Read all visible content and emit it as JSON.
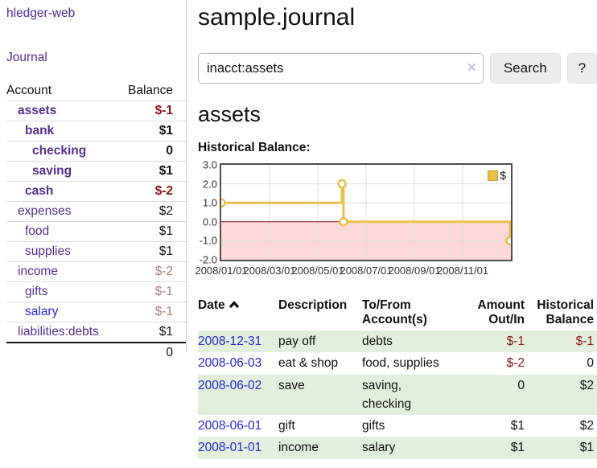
{
  "app": {
    "brand": "hledger-web",
    "nav_journal": "Journal"
  },
  "sidebar": {
    "header": {
      "account": "Account",
      "balance": "Balance"
    },
    "accounts": [
      {
        "name": "assets",
        "balance": "$-1",
        "classes": "bold d0 neg-strong"
      },
      {
        "name": "bank",
        "balance": "$1",
        "classes": "bold d1"
      },
      {
        "name": "checking",
        "balance": "0",
        "classes": "bold d2"
      },
      {
        "name": "saving",
        "balance": "$1",
        "classes": "bold d2"
      },
      {
        "name": "cash",
        "balance": "$-2",
        "classes": "bold d1 neg-strong"
      },
      {
        "name": "expenses",
        "balance": "$2",
        "classes": "d0"
      },
      {
        "name": "food",
        "balance": "$1",
        "classes": "d1"
      },
      {
        "name": "supplies",
        "balance": "$1",
        "classes": "d1"
      },
      {
        "name": "income",
        "balance": "$-2",
        "classes": "d0 neg-muted"
      },
      {
        "name": "gifts",
        "balance": "$-1",
        "classes": "d1 neg-muted"
      },
      {
        "name": "salary",
        "balance": "$-1",
        "classes": "d1 neg-muted blue-link"
      },
      {
        "name": "liabilities:debts",
        "balance": "$1",
        "classes": "d0"
      }
    ],
    "total": "0"
  },
  "header": {
    "title": "sample.journal"
  },
  "search": {
    "value": "inacct:assets",
    "clear_icon": "×",
    "button": "Search",
    "help_button": "?"
  },
  "account_page": {
    "heading": "assets",
    "chart_label": "Historical Balance:"
  },
  "chart_data": {
    "type": "line",
    "step": true,
    "title": "Historical Balance:",
    "legend_position": "top-right",
    "series": [
      {
        "name": "$",
        "points": [
          [
            "2008-01-01",
            1
          ],
          [
            "2008-06-01",
            2
          ],
          [
            "2008-06-03",
            0
          ],
          [
            "2008-12-31",
            -1
          ]
        ]
      }
    ],
    "ylim": [
      -2,
      3
    ],
    "x_months_span": 12,
    "y_ticks": [
      {
        "v": 3,
        "label": "3.0"
      },
      {
        "v": 2,
        "label": "2.0"
      },
      {
        "v": 1,
        "label": "1.0"
      },
      {
        "v": 0,
        "label": "0.0"
      },
      {
        "v": -1,
        "label": "-1.0"
      },
      {
        "v": -2,
        "label": "-2.0"
      }
    ],
    "x_ticks": [
      {
        "m": 0,
        "label": "2008/01/01"
      },
      {
        "m": 2,
        "label": "2008/03/01"
      },
      {
        "m": 4,
        "label": "2008/05/01"
      },
      {
        "m": 6,
        "label": "2008/07/01"
      },
      {
        "m": 8,
        "label": "2008/09/01"
      },
      {
        "m": 10,
        "label": "2008/11/01"
      }
    ],
    "colors": {
      "series": "#E9C04B",
      "zero_line": "#8B1515",
      "grid": "#DEDEDE",
      "negative_region": "#FBD9D9",
      "plot_border": "#4D4D4D"
    }
  },
  "register": {
    "columns": {
      "date": "Date",
      "description": "Description",
      "accounts": "To/From Account(s)",
      "amount": "Amount Out/In",
      "balance": "Historical Balance"
    },
    "rows": [
      {
        "date": "2008-12-31",
        "description": "pay off",
        "accounts": "debts",
        "amount": "$-1",
        "amount_class": "neg",
        "balance": "$-1",
        "balance_class": "neg"
      },
      {
        "date": "2008-06-03",
        "description": "eat & shop",
        "accounts": "food, supplies",
        "amount": "$-2",
        "amount_class": "neg",
        "balance": "0",
        "balance_class": ""
      },
      {
        "date": "2008-06-02",
        "description": "save",
        "accounts": "saving, checking",
        "amount": "0",
        "amount_class": "",
        "balance": "$2",
        "balance_class": ""
      },
      {
        "date": "2008-06-01",
        "description": "gift",
        "accounts": "gifts",
        "amount": "$1",
        "amount_class": "",
        "balance": "$2",
        "balance_class": ""
      },
      {
        "date": "2008-01-01",
        "description": "income",
        "accounts": "salary",
        "amount": "$1",
        "amount_class": "",
        "balance": "$1",
        "balance_class": ""
      }
    ]
  }
}
